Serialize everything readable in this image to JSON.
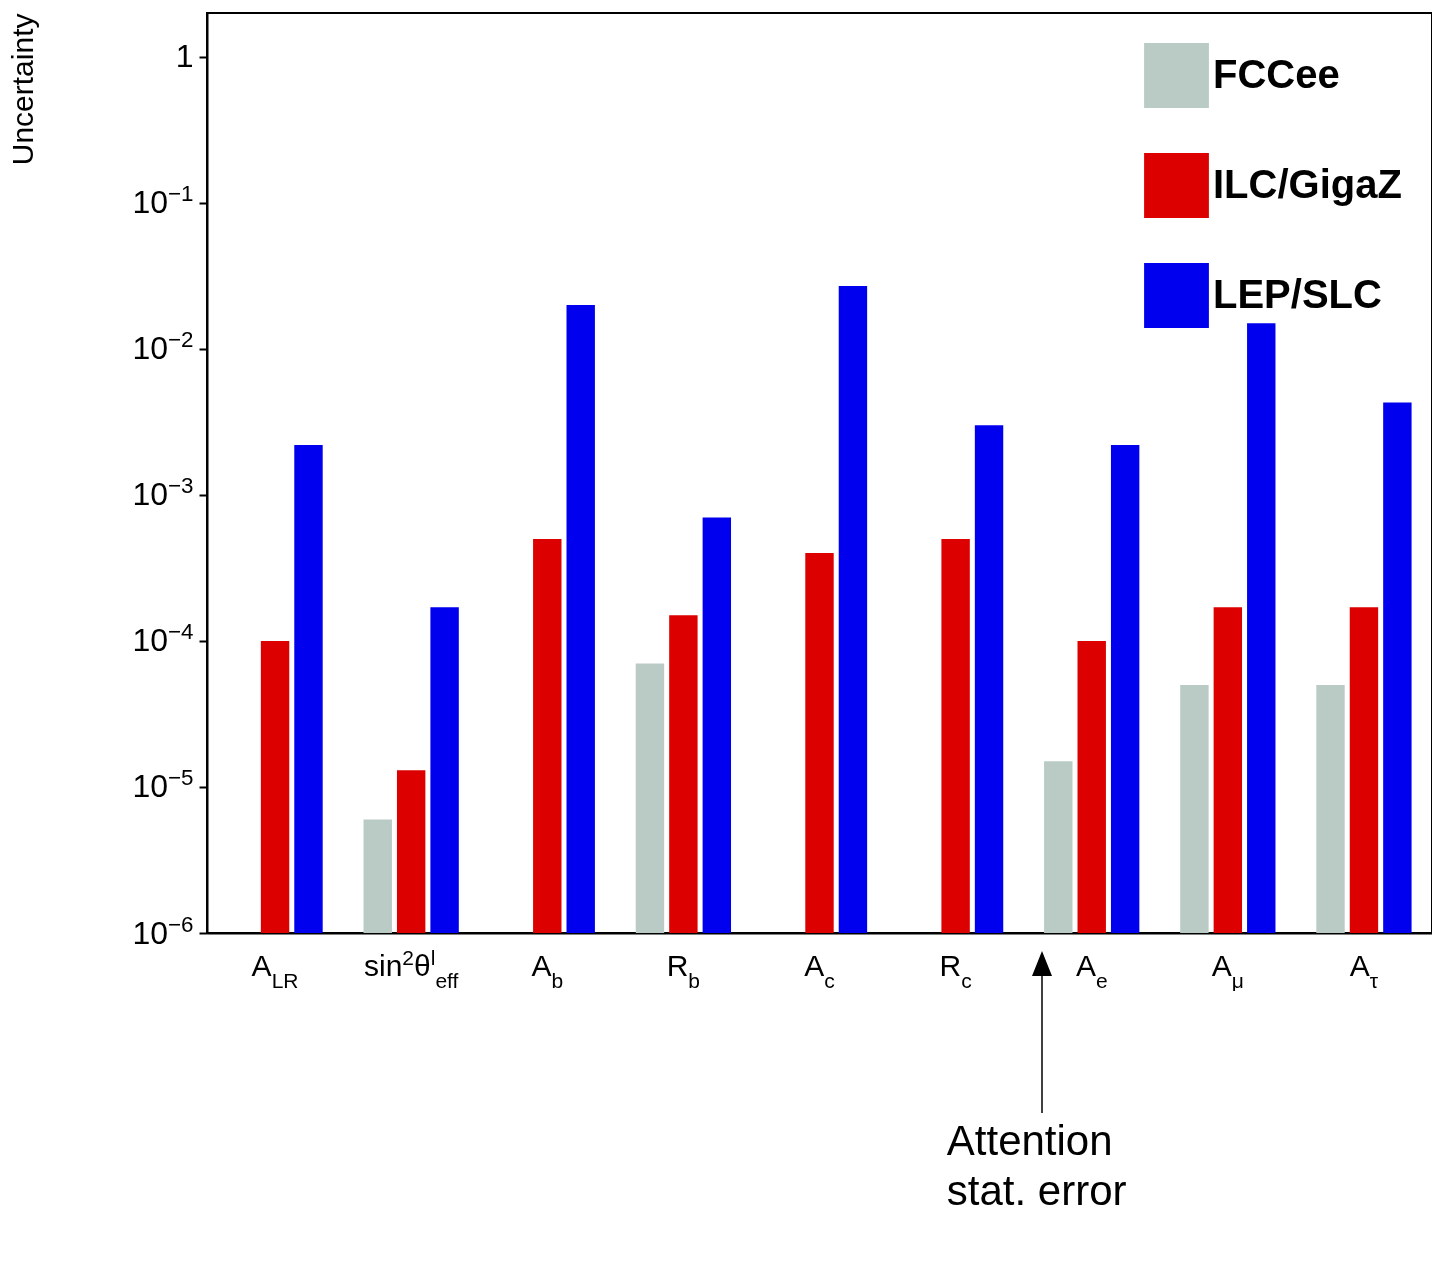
{
  "chart_data": {
    "type": "bar",
    "ylabel": "Uncertainty",
    "log": true,
    "categories": [
      "A$_{LR}$",
      "sin$^{2}$θ$^{l}$$_{eff}$",
      "A$_{b}$",
      "R$_{b}$",
      "A$_{c}$",
      "R$_{c}$",
      "A$_{e}$",
      "A$_{μ}$",
      "A$_{τ}$"
    ],
    "series": [
      {
        "name": "FCCee",
        "color": "#b9cbc4",
        "values": [
          null,
          6e-06,
          null,
          7e-05,
          null,
          null,
          1.5e-05,
          5e-05,
          5e-05
        ]
      },
      {
        "name": "ILC/GigaZ",
        "color": "#dd0000",
        "values": [
          0.0001,
          1.3e-05,
          0.0005,
          0.00015,
          0.0004,
          0.0005,
          0.0001,
          0.00017,
          0.00017
        ]
      },
      {
        "name": "LEP/SLC",
        "color": "#0000ee",
        "values": [
          0.0022,
          0.00017,
          0.02,
          0.0007,
          0.027,
          0.003,
          0.0022,
          0.015,
          0.0043
        ]
      }
    ],
    "ylim": [
      1e-06,
      2
    ],
    "yticks": [
      {
        "value": 1e-06,
        "label": "10$^{−6}$"
      },
      {
        "value": 1e-05,
        "label": "10$^{−5}$"
      },
      {
        "value": 0.0001,
        "label": "10$^{−4}$"
      },
      {
        "value": 0.001,
        "label": "10$^{−3}$"
      },
      {
        "value": 0.01,
        "label": "10$^{−2}$"
      },
      {
        "value": 0.1,
        "label": "10$^{−1}$"
      },
      1
    ],
    "legend": "top right",
    "grid": false,
    "annotations": [
      "Attention stat. error"
    ]
  }
}
